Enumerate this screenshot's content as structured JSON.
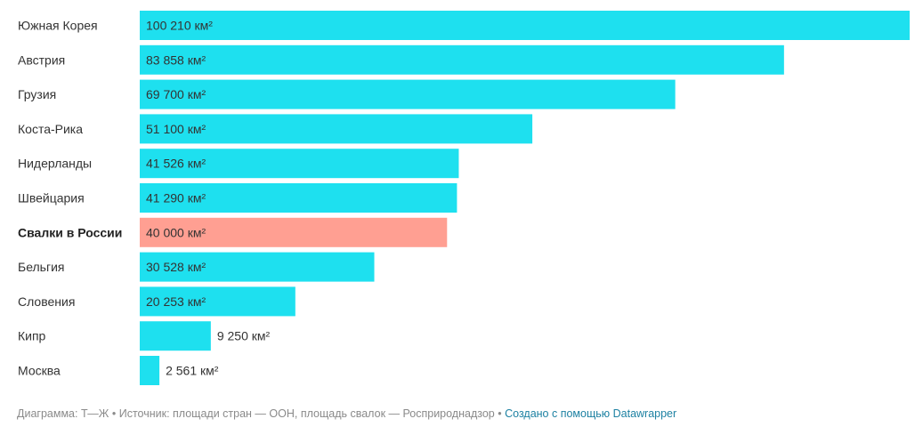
{
  "chart_data": {
    "type": "bar",
    "orientation": "horizontal",
    "categories": [
      "Южная Корея",
      "Австрия",
      "Грузия",
      "Коста-Рика",
      "Нидерланды",
      "Швейцария",
      "Свалки в России",
      "Бельгия",
      "Словения",
      "Кипр",
      "Москва"
    ],
    "values": [
      100210,
      83858,
      69700,
      51100,
      41526,
      41290,
      40000,
      30528,
      20253,
      9250,
      2561
    ],
    "value_labels": [
      "100 210 км²",
      "83 858 км²",
      "69 700 км²",
      "51 100 км²",
      "41 526 км²",
      "41 290 км²",
      "40 000 км²",
      "30 528 км²",
      "20 253 км²",
      "9 250 км²",
      "2 561 км²"
    ],
    "highlight": "Свалки в России",
    "xlim": [
      0,
      100210
    ],
    "colors": {
      "bar": "#1ee0ef",
      "highlight": "#ff9f92"
    }
  },
  "footer": {
    "chart_by": "Диаграмма: Т—Ж",
    "source": "Источник: площади стран — ООН, площадь свалок — Росприроднадзор",
    "separator": "•",
    "credit": "Создано с помощью Datawrapper"
  }
}
